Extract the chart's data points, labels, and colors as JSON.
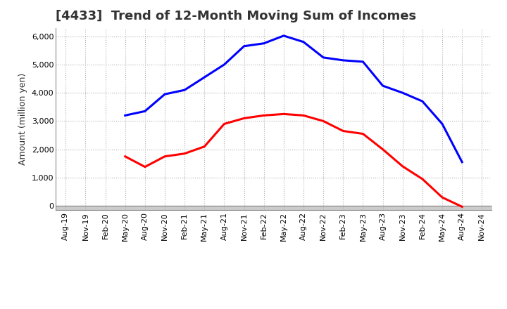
{
  "title": "[4433]  Trend of 12-Month Moving Sum of Incomes",
  "ylabel": "Amount (million yen)",
  "background_color": "#ffffff",
  "grid_color": "#b0b0b0",
  "x_labels": [
    "Aug-19",
    "Nov-19",
    "Feb-20",
    "May-20",
    "Aug-20",
    "Nov-20",
    "Feb-21",
    "May-21",
    "Aug-21",
    "Nov-21",
    "Feb-22",
    "May-22",
    "Aug-22",
    "Nov-22",
    "Feb-23",
    "May-23",
    "Aug-23",
    "Nov-23",
    "Feb-24",
    "May-24",
    "Aug-24",
    "Nov-24"
  ],
  "ordinary_income": [
    null,
    null,
    null,
    3200,
    3350,
    3950,
    4100,
    4550,
    5000,
    5650,
    5750,
    6020,
    5800,
    5250,
    5150,
    5100,
    4250,
    4000,
    3700,
    2900,
    1550,
    null
  ],
  "net_income": [
    null,
    null,
    null,
    1750,
    1380,
    1750,
    1850,
    2100,
    2900,
    3100,
    3200,
    3250,
    3200,
    3000,
    2650,
    2550,
    2000,
    1400,
    950,
    300,
    -30,
    null
  ],
  "ordinary_income_color": "#0000ff",
  "net_income_color": "#ff0000",
  "ylim": [
    -150,
    6300
  ],
  "yticks": [
    0,
    1000,
    2000,
    3000,
    4000,
    5000,
    6000
  ],
  "line_width": 2.2,
  "title_fontsize": 13,
  "axis_fontsize": 9,
  "tick_fontsize": 8,
  "legend_fontsize": 10,
  "title_color": "#333333"
}
